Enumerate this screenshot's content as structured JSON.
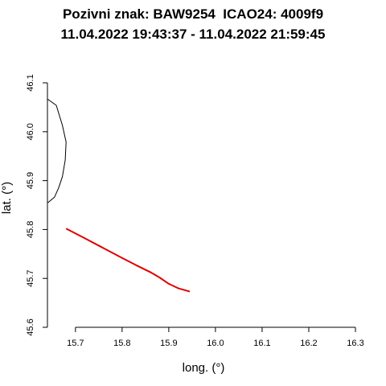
{
  "chart_data": {
    "type": "line",
    "title_line1": "Pozivni znak: BAW9254  ICAO24: 4009f9",
    "title_line2": "11.04.2022 19:43:37 - 11.04.2022 21:59:45",
    "xlabel": "long. (°)",
    "ylabel": "lat. (°)",
    "xlim": [
      15.64,
      16.3
    ],
    "ylim": [
      45.6,
      46.1
    ],
    "x_ticks": [
      "15.7",
      "15.8",
      "15.9",
      "16.0",
      "16.1",
      "16.2",
      "16.3"
    ],
    "y_ticks": [
      "45.6",
      "45.7",
      "45.8",
      "45.9",
      "46.0",
      "46.1"
    ],
    "grid": false,
    "series": [
      {
        "color": "#000000",
        "x": [
          15.64,
          15.659,
          15.672,
          15.68,
          15.678,
          15.672,
          15.664,
          15.655,
          15.641
        ],
        "y": [
          46.067,
          46.054,
          46.013,
          45.979,
          45.942,
          45.908,
          45.885,
          45.866,
          45.855
        ]
      },
      {
        "color": "#e00000",
        "x": [
          15.68,
          15.72,
          15.76,
          15.8,
          15.83,
          15.86,
          15.88,
          15.9,
          15.92,
          15.945
        ],
        "y": [
          45.802,
          45.782,
          45.762,
          45.742,
          45.727,
          45.713,
          45.702,
          45.689,
          45.68,
          45.673
        ]
      }
    ]
  }
}
